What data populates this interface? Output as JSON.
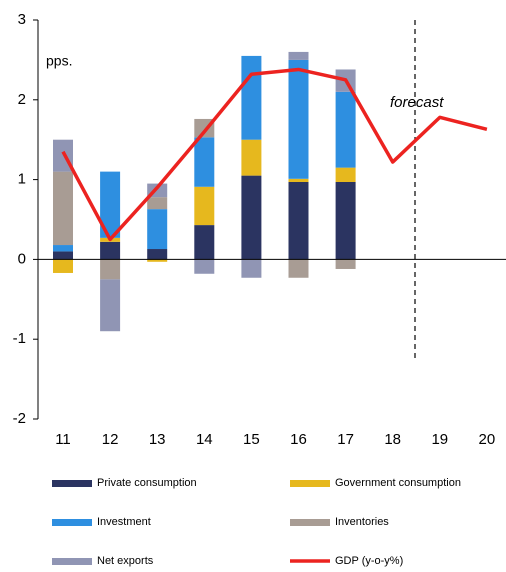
{
  "chart_data": {
    "type": "bar",
    "unit_label": "pps.",
    "annotation": "forecast",
    "categories": [
      "11",
      "12",
      "13",
      "14",
      "15",
      "16",
      "17",
      "18",
      "19",
      "20"
    ],
    "series": [
      {
        "name": "Private consumption",
        "color": "#2b3461",
        "values": [
          0.1,
          0.22,
          0.13,
          0.43,
          1.05,
          0.97,
          0.97,
          null,
          null,
          null
        ]
      },
      {
        "name": "Government consumption",
        "color": "#e6b81e",
        "values": [
          -0.17,
          0.05,
          -0.03,
          0.48,
          0.45,
          0.04,
          0.18,
          null,
          null,
          null
        ]
      },
      {
        "name": "Investment",
        "color": "#2e8fe0",
        "values": [
          0.08,
          0.83,
          0.5,
          0.62,
          1.05,
          1.49,
          0.95,
          null,
          null,
          null
        ]
      },
      {
        "name": "Inventories",
        "color": "#a89c94",
        "values": [
          0.92,
          -0.25,
          0.15,
          0.23,
          null,
          -0.23,
          -0.12,
          null,
          null,
          null
        ]
      },
      {
        "name": "Net exports",
        "color": "#9095b4",
        "values": [
          0.4,
          -0.65,
          0.17,
          -0.18,
          -0.23,
          0.1,
          0.28,
          null,
          null,
          null
        ]
      },
      {
        "name": "GDP (y-o-y%)",
        "type": "line",
        "color": "#ec2320",
        "values": [
          1.35,
          0.25,
          0.9,
          1.6,
          2.32,
          2.38,
          2.25,
          1.22,
          1.78,
          1.63
        ]
      }
    ],
    "ylim": [
      -2,
      3
    ],
    "yticks": [
      -2,
      -1,
      0,
      1,
      2,
      3
    ]
  }
}
